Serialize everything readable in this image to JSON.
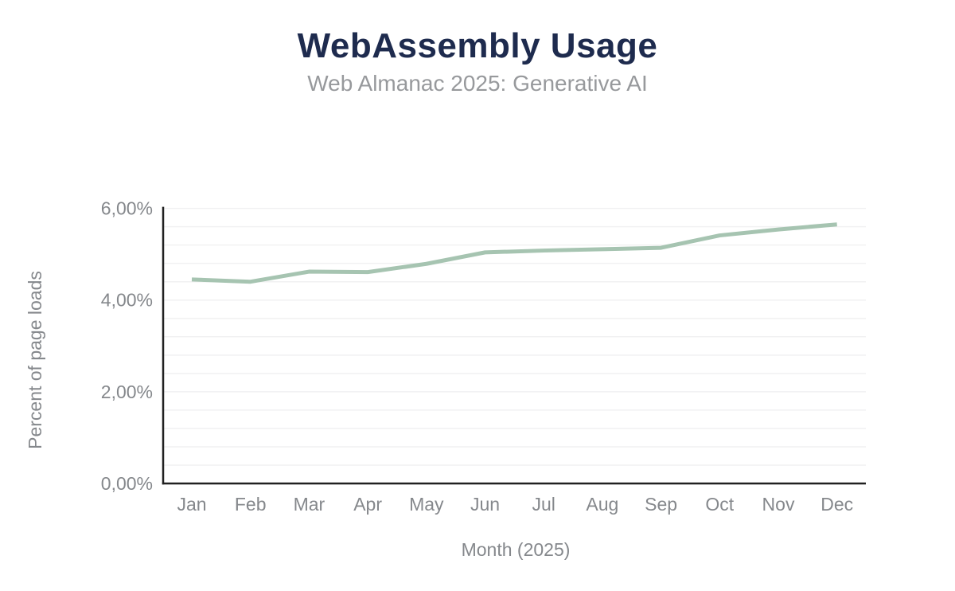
{
  "header": {
    "title": "WebAssembly Usage",
    "subtitle": "Web Almanac 2025: Generative AI"
  },
  "chart_data": {
    "type": "line",
    "title": "WebAssembly Usage",
    "subtitle": "Web Almanac 2025: Generative AI",
    "x": [
      "Jan",
      "Feb",
      "Mar",
      "Apr",
      "May",
      "Jun",
      "Jul",
      "Aug",
      "Sep",
      "Oct",
      "Nov",
      "Dec"
    ],
    "series": [
      {
        "name": "Percent of page loads",
        "values": [
          4.45,
          4.4,
          4.62,
          4.61,
          4.79,
          5.04,
          5.08,
          5.11,
          5.14,
          5.41,
          5.54,
          5.65
        ]
      }
    ],
    "xlabel": "Month (2025)",
    "ylabel": "Percent of page loads",
    "ylim": [
      0,
      6
    ],
    "y_ticks": [
      {
        "v": 0,
        "label": "0,00%"
      },
      {
        "v": 2,
        "label": "2,00%"
      },
      {
        "v": 4,
        "label": "4,00%"
      },
      {
        "v": 6,
        "label": "6,00%"
      }
    ],
    "grid": {
      "step": 0.4,
      "on": true,
      "color": "#f1f1f2"
    },
    "legend": {
      "position": "none"
    },
    "colors": {
      "line": "#a6c4b1",
      "axis": "#212121",
      "tick": "#85888c",
      "title": "#1e2b4e",
      "subtitle": "#97999c"
    }
  }
}
